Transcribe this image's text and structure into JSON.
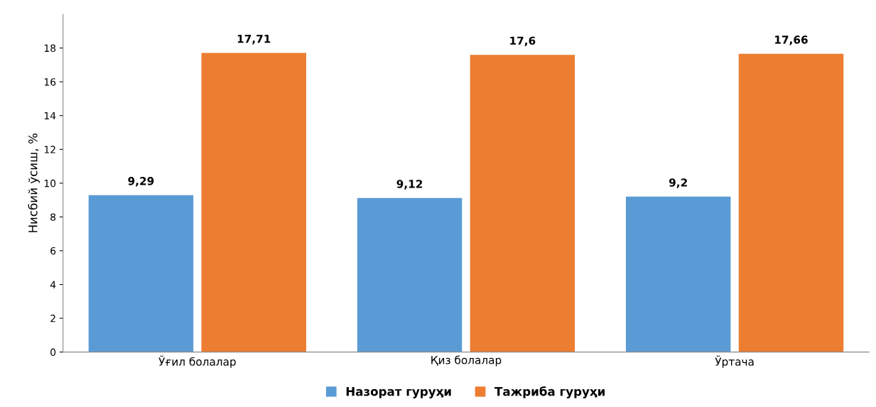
{
  "chart_data": {
    "type": "bar",
    "ylabel": "Нисбий ўсиш, %",
    "categories": [
      "Ўғил болалар",
      "Қиз болалар",
      "Ўртача"
    ],
    "series": [
      {
        "name": "Назорат гуруҳи",
        "color": "#5b9bd5",
        "values": [
          9.29,
          9.12,
          9.2
        ],
        "value_labels": [
          "9,29",
          "9,12",
          "9,2"
        ]
      },
      {
        "name": "Тажриба гуруҳи",
        "color": "#ed7d31",
        "values": [
          17.71,
          17.6,
          17.66
        ],
        "value_labels": [
          "17,71",
          "17,6",
          "17,66"
        ]
      }
    ],
    "ylim": [
      0,
      20
    ],
    "yticks": [
      0,
      2,
      4,
      6,
      8,
      10,
      12,
      14,
      16,
      18
    ],
    "grid": false,
    "legend": "bottom"
  }
}
